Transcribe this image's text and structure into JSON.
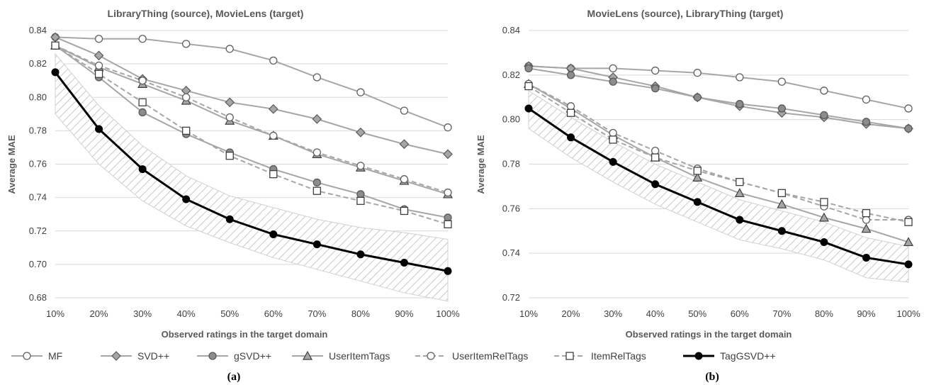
{
  "legend": [
    {
      "name": "MF",
      "color": "#a6a6a6",
      "marker": "circle-open",
      "dash": false,
      "width": 2
    },
    {
      "name": "SVD++",
      "color": "#a6a6a6",
      "marker": "diamond",
      "dash": false,
      "width": 2
    },
    {
      "name": "gSVD++",
      "color": "#a6a6a6",
      "marker": "circle-filled",
      "dash": false,
      "width": 2
    },
    {
      "name": "UserItemTags",
      "color": "#a6a6a6",
      "marker": "triangle",
      "dash": false,
      "width": 2
    },
    {
      "name": "UserItemRelTags",
      "color": "#a6a6a6",
      "marker": "circle-open",
      "dash": true,
      "width": 2
    },
    {
      "name": "ItemRelTags",
      "color": "#a6a6a6",
      "marker": "square-open",
      "dash": true,
      "width": 2
    },
    {
      "name": "TagGSVD++",
      "color": "#000000",
      "marker": "circle-black",
      "dash": false,
      "width": 3
    }
  ],
  "chart_data": [
    {
      "type": "line",
      "title": "LibraryThing (source), MovieLens (target)",
      "xlabel": "Observed ratings in the target domain",
      "ylabel": "Average MAE",
      "caption": "(a)",
      "x": [
        "10%",
        "20%",
        "30%",
        "40%",
        "50%",
        "60%",
        "70%",
        "80%",
        "90%",
        "100%"
      ],
      "ylim": [
        0.68,
        0.84
      ],
      "yticks": [
        "0.68",
        "0.70",
        "0.72",
        "0.74",
        "0.76",
        "0.78",
        "0.80",
        "0.82",
        "0.84"
      ],
      "grid": true,
      "series": [
        {
          "name": "MF",
          "values": [
            0.836,
            0.835,
            0.835,
            0.832,
            0.829,
            0.822,
            0.812,
            0.803,
            0.792,
            0.782
          ]
        },
        {
          "name": "SVD++",
          "values": [
            0.836,
            0.825,
            0.811,
            0.804,
            0.797,
            0.793,
            0.787,
            0.779,
            0.772,
            0.766
          ]
        },
        {
          "name": "gSVD++",
          "values": [
            0.831,
            0.812,
            0.791,
            0.778,
            0.767,
            0.757,
            0.749,
            0.742,
            0.733,
            0.728
          ]
        },
        {
          "name": "UserItemTags",
          "values": [
            0.831,
            0.818,
            0.808,
            0.798,
            0.786,
            0.777,
            0.766,
            0.758,
            0.75,
            0.742
          ]
        },
        {
          "name": "UserItemRelTags",
          "values": [
            0.831,
            0.819,
            0.81,
            0.8,
            0.788,
            0.777,
            0.767,
            0.759,
            0.751,
            0.743
          ]
        },
        {
          "name": "ItemRelTags",
          "values": [
            0.831,
            0.814,
            0.797,
            0.78,
            0.765,
            0.754,
            0.744,
            0.738,
            0.732,
            0.724
          ]
        },
        {
          "name": "TagGSVD++",
          "values": [
            0.815,
            0.781,
            0.757,
            0.739,
            0.727,
            0.718,
            0.712,
            0.706,
            0.701,
            0.696
          ]
        }
      ],
      "band": {
        "upper": [
          0.826,
          0.795,
          0.771,
          0.753,
          0.741,
          0.734,
          0.727,
          0.722,
          0.719,
          0.715
        ],
        "lower": [
          0.79,
          0.76,
          0.738,
          0.723,
          0.713,
          0.704,
          0.697,
          0.69,
          0.683,
          0.678
        ]
      }
    },
    {
      "type": "line",
      "title": "MovieLens (source), LibraryThing (target)",
      "xlabel": "Observed ratings in the target domain",
      "ylabel": "Average MAE",
      "caption": "(b)",
      "x": [
        "10%",
        "20%",
        "30%",
        "40%",
        "50%",
        "60%",
        "70%",
        "80%",
        "90%",
        "100%"
      ],
      "ylim": [
        0.72,
        0.84
      ],
      "yticks": [
        "0.72",
        "0.74",
        "0.76",
        "0.78",
        "0.80",
        "0.82",
        "0.84"
      ],
      "grid": true,
      "series": [
        {
          "name": "MF",
          "values": [
            0.824,
            0.823,
            0.823,
            0.822,
            0.821,
            0.819,
            0.817,
            0.813,
            0.809,
            0.805
          ]
        },
        {
          "name": "SVD++",
          "values": [
            0.824,
            0.823,
            0.819,
            0.815,
            0.81,
            0.806,
            0.803,
            0.801,
            0.798,
            0.796
          ]
        },
        {
          "name": "gSVD++",
          "values": [
            0.823,
            0.82,
            0.817,
            0.814,
            0.81,
            0.807,
            0.805,
            0.802,
            0.799,
            0.796
          ]
        },
        {
          "name": "UserItemTags",
          "values": [
            0.816,
            0.805,
            0.793,
            0.783,
            0.774,
            0.767,
            0.762,
            0.756,
            0.751,
            0.745
          ]
        },
        {
          "name": "UserItemRelTags",
          "values": [
            0.816,
            0.806,
            0.794,
            0.786,
            0.778,
            0.772,
            0.767,
            0.761,
            0.755,
            0.755
          ]
        },
        {
          "name": "ItemRelTags",
          "values": [
            0.815,
            0.803,
            0.791,
            0.783,
            0.777,
            0.772,
            0.767,
            0.763,
            0.758,
            0.754
          ]
        },
        {
          "name": "TagGSVD++",
          "values": [
            0.805,
            0.792,
            0.781,
            0.771,
            0.763,
            0.755,
            0.75,
            0.745,
            0.738,
            0.735
          ]
        }
      ],
      "band": {
        "upper": [
          0.813,
          0.801,
          0.79,
          0.78,
          0.772,
          0.764,
          0.759,
          0.754,
          0.747,
          0.743
        ],
        "lower": [
          0.796,
          0.783,
          0.772,
          0.762,
          0.754,
          0.746,
          0.742,
          0.737,
          0.729,
          0.727
        ]
      }
    }
  ]
}
